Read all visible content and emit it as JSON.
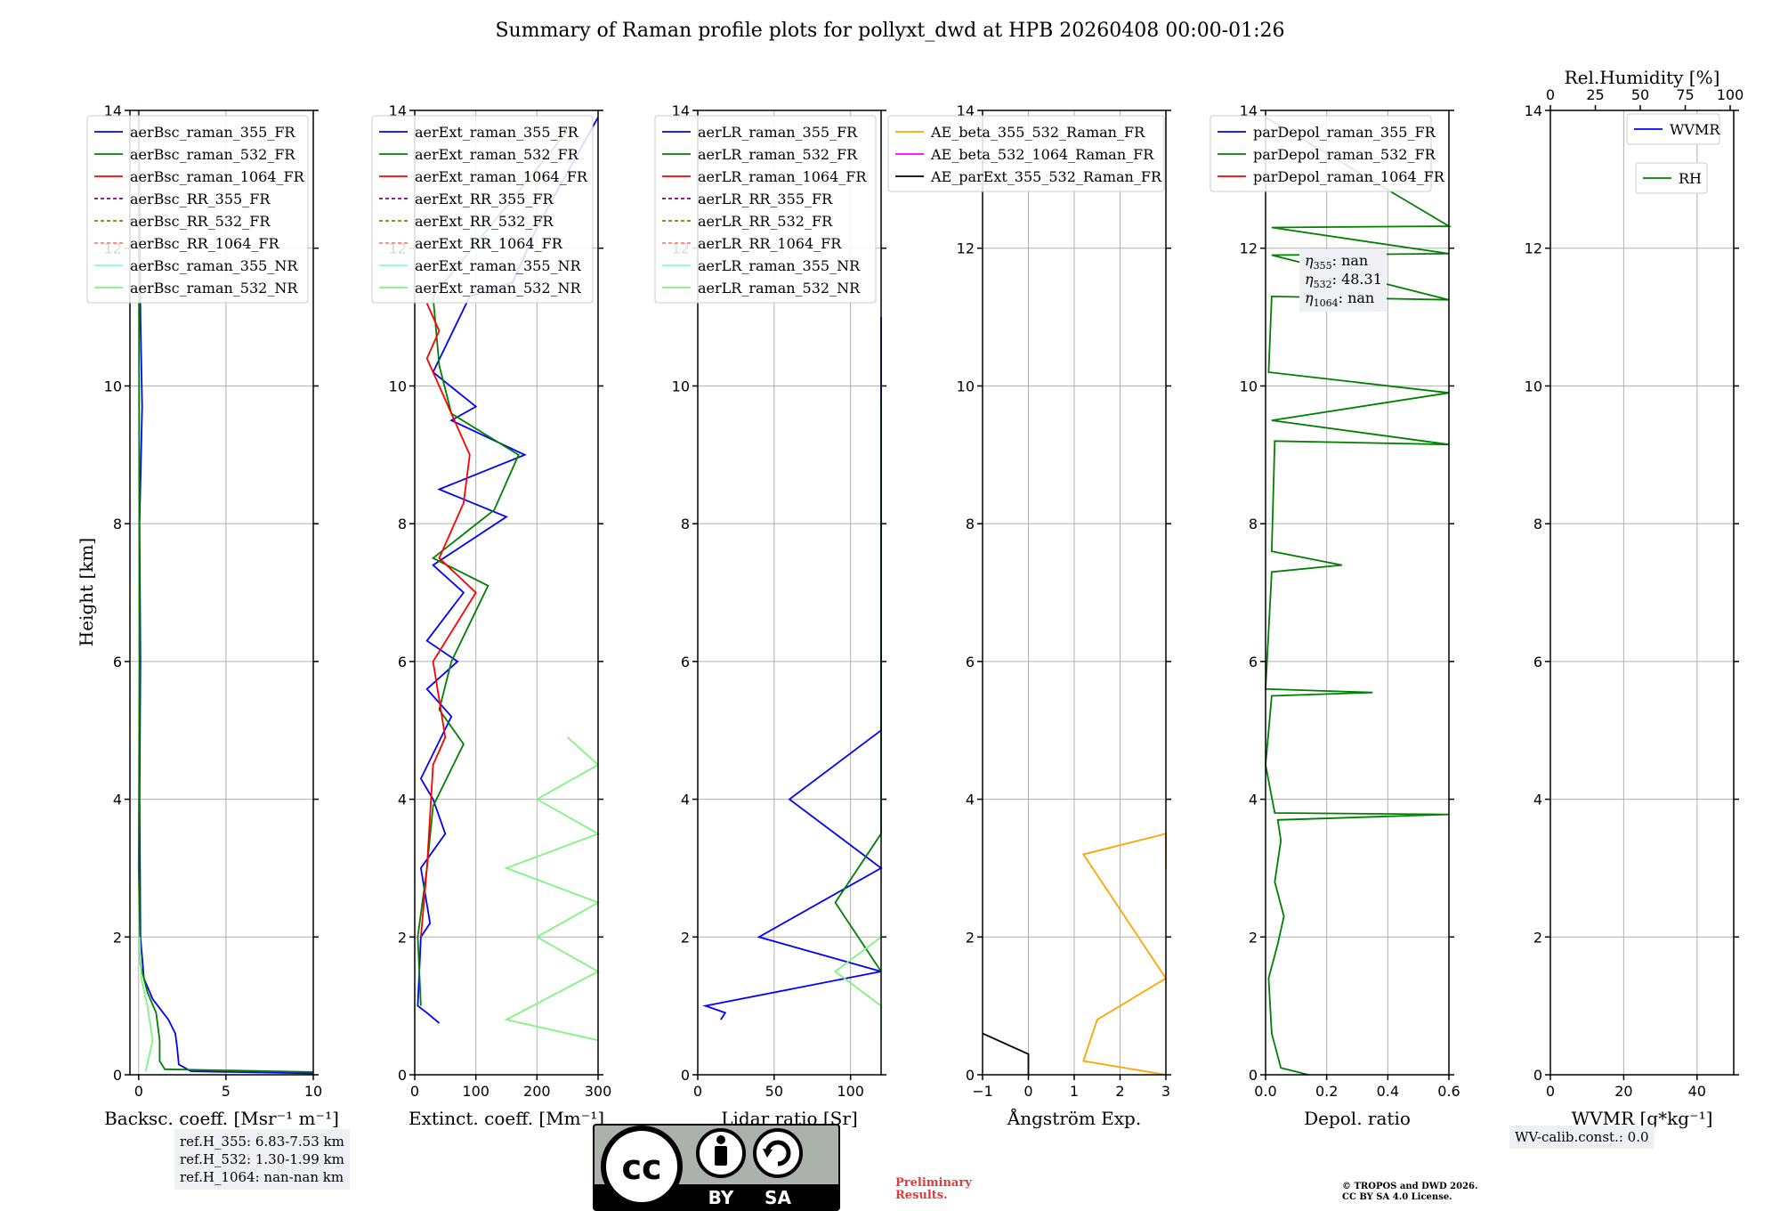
{
  "title": "Summary of Raman profile plots for pollyxt_dwd at HPB 20260408 00:00-01:26",
  "colors": {
    "blue": "#0000ff",
    "green": "#008000",
    "red": "#ff0000",
    "purple": "#800080",
    "olive": "#808000",
    "salmon": "#fa8072",
    "cyan": "#7fffd4",
    "lightgreen": "#7ff57f",
    "orange": "#ffa500",
    "magenta": "#ff00ff",
    "black": "#000000"
  },
  "chart_data": [
    {
      "type": "line",
      "xlabel": "Backsc. coeff. [Msr⁻¹ m⁻¹]",
      "ylabel": "Height [km]",
      "xlim": [
        -0.5,
        10
      ],
      "ylim": [
        0,
        14
      ],
      "xticks": [
        "0",
        "5",
        "10"
      ],
      "xtickvals": [
        0,
        5,
        10
      ],
      "yticks": [
        "0",
        "2",
        "4",
        "6",
        "8",
        "10",
        "12",
        "14"
      ],
      "legend": [
        "aerBsc_raman_355_FR",
        "aerBsc_raman_532_FR",
        "aerBsc_raman_1064_FR",
        "aerBsc_RR_355_FR",
        "aerBsc_RR_532_FR",
        "aerBsc_RR_1064_FR",
        "aerBsc_raman_355_NR",
        "aerBsc_raman_532_NR"
      ],
      "series": [
        {
          "name": "aerBsc_raman_355_FR",
          "color": "blue",
          "points": [
            [
              10,
              0.02
            ],
            [
              3,
              0.05
            ],
            [
              2.3,
              0.15
            ],
            [
              2.2,
              0.4
            ],
            [
              2.1,
              0.6
            ],
            [
              1.7,
              0.8
            ],
            [
              0.8,
              1.1
            ],
            [
              0.3,
              1.4
            ],
            [
              0.1,
              2.0
            ],
            [
              0.05,
              4
            ],
            [
              0.1,
              6
            ],
            [
              0.05,
              8
            ],
            [
              0.2,
              9.7
            ],
            [
              0.1,
              11
            ],
            [
              0.0,
              14
            ]
          ]
        },
        {
          "name": "aerBsc_raman_532_FR",
          "color": "green",
          "points": [
            [
              10,
              0.04
            ],
            [
              1.5,
              0.08
            ],
            [
              1.2,
              0.2
            ],
            [
              1.2,
              0.5
            ],
            [
              1.0,
              0.9
            ],
            [
              0.5,
              1.2
            ],
            [
              0.1,
              1.6
            ],
            [
              0.0,
              3
            ],
            [
              0.05,
              6
            ],
            [
              0.0,
              14
            ]
          ]
        },
        {
          "name": "aerBsc_raman_532_NR",
          "color": "lightgreen",
          "points": [
            [
              0.4,
              0.05
            ],
            [
              0.8,
              0.5
            ],
            [
              0.5,
              1.0
            ],
            [
              0.15,
              1.4
            ],
            [
              0.05,
              2.0
            ]
          ]
        }
      ]
    },
    {
      "type": "line",
      "xlabel": "Extinct. coeff. [Mm⁻¹]",
      "xlim": [
        0,
        300
      ],
      "ylim": [
        0,
        14
      ],
      "xticks": [
        "0",
        "100",
        "200",
        "300"
      ],
      "xtickvals": [
        0,
        100,
        200,
        300
      ],
      "yticks": [
        "0",
        "2",
        "4",
        "6",
        "8",
        "10",
        "12",
        "14"
      ],
      "legend": [
        "aerExt_raman_355_FR",
        "aerExt_raman_532_FR",
        "aerExt_raman_1064_FR",
        "aerExt_RR_355_FR",
        "aerExt_RR_532_FR",
        "aerExt_RR_1064_FR",
        "aerExt_raman_355_NR",
        "aerExt_raman_532_NR"
      ],
      "series": [
        {
          "name": "aerExt_raman_355_FR",
          "color": "blue",
          "points": [
            [
              40,
              0.75
            ],
            [
              20,
              0.9
            ],
            [
              5,
              1.0
            ],
            [
              10,
              2.0
            ],
            [
              25,
              2.2
            ],
            [
              10,
              3.0
            ],
            [
              50,
              3.5
            ],
            [
              30,
              4.0
            ],
            [
              10,
              4.3
            ],
            [
              60,
              5.2
            ],
            [
              20,
              5.6
            ],
            [
              70,
              6.0
            ],
            [
              20,
              6.3
            ],
            [
              80,
              7.0
            ],
            [
              30,
              7.4
            ],
            [
              150,
              8.1
            ],
            [
              40,
              8.5
            ],
            [
              180,
              9.0
            ],
            [
              60,
              9.5
            ],
            [
              100,
              9.7
            ],
            [
              30,
              10.2
            ],
            [
              90,
              11.3
            ],
            [
              160,
              11.5
            ],
            [
              200,
              12.3
            ],
            [
              300,
              13.9
            ]
          ]
        },
        {
          "name": "aerExt_raman_532_FR",
          "color": "green",
          "points": [
            [
              10,
              1.0
            ],
            [
              5,
              2.0
            ],
            [
              20,
              3.0
            ],
            [
              30,
              3.9
            ],
            [
              80,
              4.8
            ],
            [
              40,
              5.3
            ],
            [
              60,
              6.0
            ],
            [
              120,
              7.1
            ],
            [
              30,
              7.5
            ],
            [
              130,
              8.2
            ],
            [
              170,
              9.0
            ],
            [
              60,
              9.6
            ],
            [
              40,
              10.3
            ],
            [
              30,
              11.3
            ],
            [
              250,
              13.7
            ]
          ]
        },
        {
          "name": "aerExt_raman_1064_FR",
          "color": "red",
          "points": [
            [
              10,
              2.0
            ],
            [
              20,
              3.0
            ],
            [
              30,
              4.5
            ],
            [
              50,
              4.9
            ],
            [
              30,
              6.0
            ],
            [
              100,
              7.0
            ],
            [
              40,
              7.5
            ],
            [
              80,
              8.3
            ],
            [
              90,
              9.0
            ],
            [
              50,
              9.8
            ],
            [
              20,
              10.4
            ],
            [
              40,
              10.8
            ],
            [
              20,
              11.2
            ]
          ]
        },
        {
          "name": "aerExt_raman_532_NR",
          "color": "lightgreen",
          "points": [
            [
              300,
              0.5
            ],
            [
              150,
              0.8
            ],
            [
              300,
              1.5
            ],
            [
              200,
              2.0
            ],
            [
              300,
              2.5
            ],
            [
              150,
              3.0
            ],
            [
              300,
              3.5
            ],
            [
              200,
              4.0
            ],
            [
              300,
              4.5
            ],
            [
              250,
              4.9
            ]
          ]
        }
      ]
    },
    {
      "type": "line",
      "xlabel": "Lidar ratio [Sr]",
      "xlim": [
        0,
        120
      ],
      "ylim": [
        0,
        14
      ],
      "xticks": [
        "0",
        "50",
        "100"
      ],
      "xtickvals": [
        0,
        50,
        100
      ],
      "yticks": [
        "0",
        "2",
        "4",
        "6",
        "8",
        "10",
        "12",
        "14"
      ],
      "legend": [
        "aerLR_raman_355_FR",
        "aerLR_raman_532_FR",
        "aerLR_raman_1064_FR",
        "aerLR_RR_355_FR",
        "aerLR_RR_532_FR",
        "aerLR_RR_1064_FR",
        "aerLR_raman_355_NR",
        "aerLR_raman_532_NR"
      ],
      "series": [
        {
          "name": "aerLR_raman_355_FR",
          "color": "blue",
          "points": [
            [
              15,
              0.8
            ],
            [
              18,
              0.9
            ],
            [
              5,
              1.0
            ],
            [
              120,
              1.5
            ],
            [
              40,
              2.0
            ],
            [
              120,
              3.0
            ],
            [
              60,
              4.0
            ],
            [
              120,
              5.0
            ],
            [
              120,
              8.0
            ],
            [
              120,
              11.0
            ]
          ]
        },
        {
          "name": "aerLR_raman_532_FR",
          "color": "green",
          "points": [
            [
              120,
              1.5
            ],
            [
              90,
              2.5
            ],
            [
              120,
              3.5
            ],
            [
              120,
              4.2
            ],
            [
              120,
              7.5
            ],
            [
              120,
              9.8
            ]
          ]
        },
        {
          "name": "aerLR_raman_532_NR",
          "color": "lightgreen",
          "points": [
            [
              120,
              0.5
            ],
            [
              120,
              1.0
            ],
            [
              90,
              1.5
            ],
            [
              120,
              2.0
            ]
          ]
        }
      ]
    },
    {
      "type": "line",
      "xlabel": "Ångström Exp.",
      "xlim": [
        -1,
        3
      ],
      "ylim": [
        0,
        14
      ],
      "xticks": [
        "−1",
        "0",
        "1",
        "2",
        "3"
      ],
      "xtickvals": [
        -1,
        0,
        1,
        2,
        3
      ],
      "yticks": [
        "0",
        "2",
        "4",
        "6",
        "8",
        "10",
        "12",
        "14"
      ],
      "legend": [
        "AE_beta_355_532_Raman_FR",
        "AE_beta_532_1064_Raman_FR",
        "AE_parExt_355_532_Raman_FR"
      ],
      "series": [
        {
          "name": "AE_beta_355_532_Raman_FR",
          "color": "orange",
          "points": [
            [
              3,
              0.0
            ],
            [
              1.2,
              0.2
            ],
            [
              1.5,
              0.8
            ],
            [
              3,
              1.4
            ],
            [
              1.2,
              3.2
            ],
            [
              3,
              3.5
            ],
            [
              3,
              3.0
            ]
          ]
        },
        {
          "name": "AE_parExt_355_532_Raman_FR",
          "color": "black",
          "points": [
            [
              -1,
              0.6
            ],
            [
              0,
              0.3
            ],
            [
              0,
              0.0
            ]
          ]
        }
      ]
    },
    {
      "type": "line",
      "xlabel": "Depol. ratio",
      "xlim": [
        0,
        0.6
      ],
      "ylim": [
        0,
        14
      ],
      "xticks": [
        "0.0",
        "0.2",
        "0.4",
        "0.6"
      ],
      "xtickvals": [
        0,
        0.2,
        0.4,
        0.6
      ],
      "yticks": [
        "0",
        "2",
        "4",
        "6",
        "8",
        "10",
        "12",
        "14"
      ],
      "legend": [
        "parDepol_raman_355_FR",
        "parDepol_raman_532_FR",
        "parDepol_raman_1064_FR"
      ],
      "annotation": {
        "eta355": "nan",
        "eta532": "48.31",
        "eta1064": "nan"
      },
      "series": [
        {
          "name": "parDepol_raman_532_FR",
          "color": "green",
          "points": [
            [
              0.14,
              0.0
            ],
            [
              0.05,
              0.1
            ],
            [
              0.02,
              0.6
            ],
            [
              0.01,
              1.4
            ],
            [
              0.04,
              1.9
            ],
            [
              0.06,
              2.3
            ],
            [
              0.03,
              2.8
            ],
            [
              0.05,
              3.4
            ],
            [
              0.04,
              3.7
            ],
            [
              0.6,
              3.78
            ],
            [
              0.03,
              3.8
            ],
            [
              0.0,
              4.5
            ],
            [
              0.02,
              5.5
            ],
            [
              0.35,
              5.55
            ],
            [
              0.0,
              5.6
            ],
            [
              0.02,
              7.3
            ],
            [
              0.25,
              7.4
            ],
            [
              0.02,
              7.6
            ],
            [
              0.03,
              9.2
            ],
            [
              0.6,
              9.15
            ],
            [
              0.02,
              9.5
            ],
            [
              0.6,
              9.9
            ],
            [
              0.01,
              10.2
            ],
            [
              0.02,
              11.3
            ],
            [
              0.6,
              11.25
            ],
            [
              0.02,
              11.9
            ],
            [
              0.6,
              11.92
            ],
            [
              0.02,
              12.3
            ],
            [
              0.6,
              12.32
            ],
            [
              0.0,
              13.9
            ]
          ]
        }
      ]
    },
    {
      "type": "line",
      "xlabel": "WVMR [g*kg⁻¹]",
      "xlim": [
        0,
        50
      ],
      "ylim": [
        0,
        14
      ],
      "xticks": [
        "0",
        "20",
        "40"
      ],
      "xtickvals": [
        0,
        20,
        40
      ],
      "yticks": [
        "0",
        "2",
        "4",
        "6",
        "8",
        "10",
        "12",
        "14"
      ],
      "top_xlabel": "Rel.Humidity [%]",
      "top_xticks": [
        "0",
        "25",
        "50",
        "75",
        "100"
      ],
      "legend": [
        "WVMR"
      ],
      "legend2": [
        "RH"
      ],
      "series": []
    }
  ],
  "refH": {
    "line1": "ref.H_355: 6.83-7.53 km",
    "line2": "ref.H_532: 1.30-1.99 km",
    "line3": "ref.H_1064: nan-nan km"
  },
  "wv_calib": "WV-calib.const.: 0.0",
  "license": {
    "cc": "cc",
    "by": "BY",
    "sa": "SA"
  },
  "prelim": {
    "line1": "Preliminary",
    "line2": "Results."
  },
  "copyright": {
    "line1": "© TROPOS and DWD 2026.",
    "line2": "CC BY SA 4.0 License."
  }
}
